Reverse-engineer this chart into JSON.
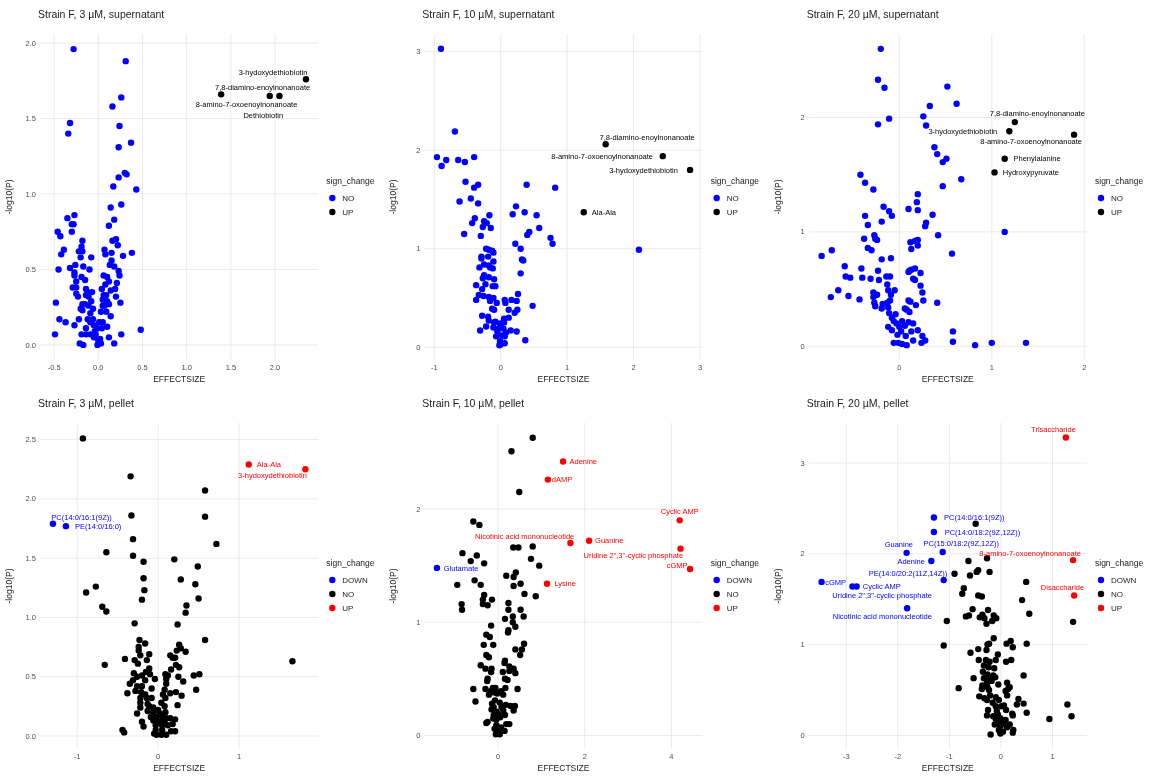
{
  "chart_data": [
    {
      "type": "scatter",
      "title": "Strain F, 3 µM, supernatant",
      "xlabel": "EFFECTSIZE",
      "ylabel": "-log10(P)",
      "legend_title": "sign_change",
      "legend": "right",
      "grid": true,
      "marker": "circle",
      "xlim": [
        -0.66,
        2.49
      ],
      "ylim": [
        -0.1,
        2.06
      ],
      "xticks": [
        -0.5,
        {
          "value": 0,
          "label": "0.0"
        },
        0.5,
        {
          "value": 1,
          "label": "1.0"
        },
        1.5,
        {
          "value": 2,
          "label": "2.0"
        }
      ],
      "yticks": [
        {
          "value": 0,
          "label": "0.0"
        },
        0.5,
        {
          "value": 1,
          "label": "1.0"
        },
        1.5,
        {
          "value": 2,
          "label": "2.0"
        }
      ],
      "series": [
        {
          "name": "NO",
          "color": "#0000ff",
          "x": [
            -0.28,
            0.31,
            0.26,
            0.16,
            -0.32,
            -0.34,
            0.24,
            0.37,
            0.23,
            0.3,
            0.32,
            0.23,
            0.17,
            0.43,
            0.26,
            0.14,
            0.18,
            0.12,
            -0.35,
            -0.27,
            -0.28,
            -0.3,
            -0.46,
            -0.43,
            -0.3,
            -0.18,
            0.16,
            0.2,
            0.22,
            -0.39,
            -0.22,
            -0.18,
            -0.19,
            -0.42,
            0.07,
            0.08,
            0.15,
            0.28,
            0.38,
            -0.2,
            -0.08,
            -0.45,
            -0.32,
            -0.26,
            -0.17,
            -0.1,
            0.15,
            0.13,
            0.18,
            0.23,
            0.24,
            -0.27,
            -0.27,
            -0.19,
            -0.15,
            0.06,
            0.1,
            0.12,
            0.21,
            -0.25,
            -0.29,
            -0.25,
            0.08,
            0.19,
            -0.25,
            -0.14,
            -0.12,
            -0.07,
            0.04,
            0.14,
            -0.23,
            -0.14,
            -0.11,
            0.06,
            0.09,
            0.05,
            0.1,
            0.2,
            -0.18,
            -0.08,
            -0.48,
            0.25,
            0.12,
            0.05,
            -0.11,
            -0.15,
            -0.2,
            -0.18,
            -0.06,
            0.07,
            -0.09,
            0.03,
            0.09,
            -0.44,
            -0.37,
            -0.22,
            -0.12,
            -0.06,
            0.14,
            -0.27,
            -0.09,
            -0.05,
            0.01,
            0.05,
            0.1,
            -0.14,
            -0.01,
            0.04,
            0.48,
            -0.04,
            -0.49,
            -0.19,
            -0.14,
            -0.09,
            -0.03,
            0.26,
            0.12,
            -0.05,
            0.02,
            0.0,
            -0.21,
            -0.17,
            -0.01,
            0.03,
            0.18
          ],
          "values": [
            1.96,
            1.88,
            1.64,
            1.58,
            1.47,
            1.4,
            1.45,
            1.34,
            1.31,
            1.14,
            1.13,
            1.11,
            1.05,
            1.03,
            0.93,
            0.91,
            0.83,
            0.79,
            0.84,
            0.86,
            0.8,
            0.8,
            0.75,
            0.72,
            0.75,
            0.69,
            0.69,
            0.7,
            0.66,
            0.63,
            0.62,
            0.62,
            0.65,
            0.6,
            0.63,
            0.6,
            0.61,
            0.59,
            0.61,
            0.58,
            0.58,
            0.5,
            0.51,
            0.53,
            0.52,
            0.5,
            0.56,
            0.53,
            0.52,
            0.49,
            0.46,
            0.48,
            0.46,
            0.45,
            0.43,
            0.46,
            0.45,
            0.42,
            0.41,
            0.42,
            0.38,
            0.38,
            0.4,
            0.37,
            0.34,
            0.37,
            0.35,
            0.35,
            0.37,
            0.36,
            0.32,
            0.33,
            0.32,
            0.33,
            0.33,
            0.3,
            0.29,
            0.32,
            0.27,
            0.29,
            0.28,
            0.28,
            0.27,
            0.26,
            0.26,
            0.27,
            0.24,
            0.23,
            0.24,
            0.26,
            0.21,
            0.22,
            0.22,
            0.17,
            0.15,
            0.17,
            0.17,
            0.17,
            0.19,
            0.13,
            0.15,
            0.13,
            0.15,
            0.15,
            0.12,
            0.11,
            0.11,
            0.11,
            0.1,
            0.09,
            0.07,
            0.07,
            0.07,
            0.07,
            0.07,
            0.07,
            0.05,
            0.05,
            0.04,
            0.03,
            0.01,
            0.0,
            0.0,
            0.01,
            0.01
          ]
        },
        {
          "name": "UP",
          "color": "#000000",
          "x": [
            2.35,
            1.39,
            1.94,
            2.05
          ],
          "values": [
            1.76,
            1.66,
            1.65,
            1.65
          ]
        }
      ],
      "annotations": [
        {
          "text": "3-hydoxydethiobiotin",
          "x": 2.35,
          "y": 1.76
        },
        {
          "text": "7,8-diamino-enoylnonanoate",
          "x": 1.39,
          "y": 1.66
        },
        {
          "text": "Dethiobiotin",
          "x": 2.05,
          "y": 1.65
        },
        {
          "text": "8-amino-7-oxoenoylnonanoate",
          "x": 1.94,
          "y": 1.65
        }
      ]
    },
    {
      "type": "scatter",
      "title": "Strain F, 10 µM, supernatant",
      "xlabel": "EFFECTSIZE",
      "ylabel": "-log10(P)",
      "legend_title": "sign_change",
      "legend": "right",
      "grid": true,
      "marker": "circle",
      "xlim": [
        -1.15,
        3.04
      ],
      "ylim": [
        -0.13,
        3.18
      ],
      "xticks": [
        -1,
        0,
        1,
        2,
        3
      ],
      "yticks": [
        0,
        1,
        2,
        3
      ],
      "series": [
        {
          "name": "NO",
          "color": "#0000ff",
          "x": [
            -0.9,
            -0.69,
            -0.96,
            -0.89,
            -0.82,
            -0.64,
            -0.54,
            -0.4,
            -0.53,
            -0.34,
            -0.4,
            -0.62,
            -0.45,
            -0.34,
            0.39,
            0.82,
            0.23,
            0.18,
            0.36,
            0.54,
            -0.17,
            -0.39,
            -0.43,
            -0.25,
            -0.21,
            -0.27,
            -0.15,
            0.58,
            0.43,
            0.4,
            -0.55,
            -0.3,
            0.75,
            0.78,
            0.22,
            0.3,
            2.08,
            -0.22,
            -0.18,
            -0.13,
            -0.11,
            -0.29,
            -0.29,
            -0.19,
            -0.11,
            0.32,
            0.34,
            -0.32,
            -0.25,
            -0.18,
            -0.16,
            -0.12,
            0.3,
            -0.25,
            -0.27,
            -0.18,
            -0.1,
            -0.37,
            -0.23,
            -0.12,
            -0.08,
            -0.28,
            -0.33,
            -0.26,
            -0.18,
            -0.11,
            -0.37,
            -0.16,
            -0.06,
            0.06,
            0.16,
            0.26,
            0.24,
            0.07,
            0.48,
            -0.13,
            -0.1,
            0.12,
            0.25,
            0.21,
            -0.28,
            -0.19,
            -0.18,
            -0.08,
            0.05,
            0.12,
            -0.22,
            -0.1,
            -0.01,
            0.05,
            -0.11,
            -0.03,
            0.04,
            0.15,
            -0.31,
            0.24,
            -0.05,
            0.08,
            -0.07,
            0.02,
            0.06,
            0.37,
            -0.01,
            0.06,
            0.0,
            -0.02
          ],
          "values": [
            3.03,
            2.19,
            1.93,
            1.84,
            1.9,
            1.9,
            1.88,
            1.93,
            1.68,
            1.65,
            1.62,
            1.48,
            1.51,
            1.46,
            1.65,
            1.62,
            1.43,
            1.35,
            1.37,
            1.34,
            1.34,
            1.31,
            1.26,
            1.28,
            1.26,
            1.22,
            1.21,
            1.21,
            1.17,
            1.14,
            1.15,
            1.13,
            1.11,
            1.05,
            1.05,
            1.0,
            0.99,
            1.0,
            0.99,
            0.98,
            0.96,
            0.92,
            0.9,
            0.92,
            0.87,
            0.89,
            0.88,
            0.81,
            0.84,
            0.83,
            0.81,
            0.8,
            0.75,
            0.73,
            0.7,
            0.71,
            0.69,
            0.63,
            0.64,
            0.62,
            0.62,
            0.59,
            0.53,
            0.52,
            0.51,
            0.5,
            0.48,
            0.47,
            0.45,
            0.48,
            0.48,
            0.54,
            0.47,
            0.45,
            0.42,
            0.39,
            0.38,
            0.38,
            0.38,
            0.35,
            0.32,
            0.31,
            0.27,
            0.26,
            0.29,
            0.3,
            0.21,
            0.25,
            0.24,
            0.25,
            0.2,
            0.19,
            0.19,
            0.17,
            0.17,
            0.16,
            0.16,
            0.15,
            0.11,
            0.12,
            0.11,
            0.07,
            0.06,
            0.04,
            0.03,
            0.02
          ]
        },
        {
          "name": "UP",
          "color": "#000000",
          "x": [
            1.58,
            2.85,
            2.44,
            1.25
          ],
          "values": [
            2.06,
            1.8,
            1.94,
            1.37
          ]
        }
      ],
      "annotations": [
        {
          "text": "7,8-diamino-enoylnonanoate",
          "x": 1.58,
          "y": 2.06
        },
        {
          "text": "3-hydoxydethiobiotin",
          "x": 2.85,
          "y": 1.8
        },
        {
          "text": "8-amino-7-oxoenoylnonanoate",
          "x": 2.44,
          "y": 1.94
        },
        {
          "text": "Ala-Ala",
          "x": 1.25,
          "y": 1.37
        }
      ]
    },
    {
      "type": "scatter",
      "title": "Strain F, 20 µM, supernatant",
      "xlabel": "EFFECTSIZE",
      "ylabel": "-log10(P)",
      "legend_title": "sign_change",
      "legend": "right",
      "grid": true,
      "marker": "circle",
      "xlim": [
        -0.98,
        2.03
      ],
      "ylim": [
        -0.12,
        2.73
      ],
      "xticks": [
        0,
        1,
        2
      ],
      "yticks": [
        0,
        1,
        2
      ],
      "series": [
        {
          "name": "NO",
          "color": "#0000ff",
          "x": [
            -0.2,
            -0.23,
            -0.16,
            0.52,
            0.62,
            0.33,
            0.26,
            -0.11,
            -0.23,
            0.29,
            0.38,
            0.41,
            0.51,
            0.47,
            -0.42,
            -0.37,
            0.47,
            -0.28,
            0.2,
            0.19,
            -0.17,
            0.1,
            0.2,
            -0.11,
            -0.08,
            -0.37,
            0.36,
            -0.19,
            -0.34,
            0.29,
            0.28,
            1.14,
            -0.27,
            -0.38,
            -0.26,
            -0.24,
            0.42,
            0.2,
            0.17,
            0.12,
            -0.73,
            -0.34,
            -0.3,
            -0.84,
            0.13,
            0.2,
            0.57,
            -0.09,
            -0.19,
            -0.59,
            -0.41,
            -0.23,
            0.11,
            0.13,
            0.17,
            0.1,
            -0.58,
            -0.53,
            -0.4,
            -0.31,
            -0.14,
            -0.1,
            -0.22,
            0.23,
            0.15,
            0.17,
            -0.13,
            0.23,
            -0.66,
            -0.05,
            -0.12,
            -0.28,
            -0.24,
            -0.09,
            0.25,
            -0.74,
            -0.55,
            -0.43,
            -0.28,
            -0.1,
            0.1,
            0.12,
            0.26,
            0.41,
            -0.27,
            -0.13,
            -0.18,
            -0.26,
            -0.19,
            -0.12,
            0.18,
            0.06,
            0.08,
            0.11,
            -0.04,
            -0.11,
            -0.08,
            -0.06,
            0.03,
            0.1,
            0.15,
            -0.12,
            -0.03,
            0.0,
            0.06,
            0.2,
            -0.08,
            0.02,
            0.13,
            0.58,
            0.25,
            -0.02,
            0.07,
            0.15,
            0.28,
            0.58,
            0.24,
            -0.06,
            -0.01,
            0.03,
            0.08,
            1.0,
            0.82,
            1.37,
            0.67
          ],
          "values": [
            2.6,
            2.33,
            2.26,
            2.27,
            2.12,
            2.1,
            2.01,
            1.99,
            1.94,
            1.93,
            1.74,
            1.68,
            1.64,
            1.61,
            1.5,
            1.43,
            1.4,
            1.37,
            1.33,
            1.26,
            1.22,
            1.2,
            1.19,
            1.18,
            1.14,
            1.14,
            1.15,
            1.09,
            1.06,
            1.08,
            1.05,
            1.0,
            0.97,
            0.94,
            0.94,
            0.93,
            0.97,
            0.93,
            0.92,
            0.91,
            0.84,
            0.86,
            0.84,
            0.79,
            0.85,
            0.88,
            0.81,
            0.77,
            0.76,
            0.7,
            0.68,
            0.66,
            0.66,
            0.67,
            0.68,
            0.65,
            0.61,
            0.6,
            0.6,
            0.59,
            0.61,
            0.61,
            0.58,
            0.64,
            0.59,
            0.58,
            0.54,
            0.53,
            0.49,
            0.49,
            0.49,
            0.47,
            0.45,
            0.45,
            0.47,
            0.43,
            0.44,
            0.41,
            0.43,
            0.4,
            0.4,
            0.39,
            0.4,
            0.38,
            0.38,
            0.38,
            0.37,
            0.35,
            0.33,
            0.34,
            0.36,
            0.33,
            0.32,
            0.3,
            0.28,
            0.29,
            0.25,
            0.22,
            0.22,
            0.21,
            0.2,
            0.17,
            0.2,
            0.17,
            0.18,
            0.14,
            0.14,
            0.13,
            0.13,
            0.13,
            0.09,
            0.1,
            0.09,
            0.05,
            0.05,
            0.04,
            0.03,
            0.03,
            0.03,
            0.02,
            0.01,
            0.03,
            0.01,
            0.03,
            1.46
          ]
        },
        {
          "name": "UP",
          "color": "#000000",
          "x": [
            1.25,
            1.19,
            1.89,
            1.14,
            1.03
          ],
          "values": [
            1.96,
            1.88,
            1.85,
            1.64,
            1.52
          ]
        }
      ],
      "annotations": [
        {
          "text": "7,8-diamino-enoylnonanoate",
          "x": 1.25,
          "y": 1.96
        },
        {
          "text": "3-hydoxydethiobiotin",
          "x": 1.19,
          "y": 1.88
        },
        {
          "text": "8-amino-7-oxoenoylnonanoate",
          "x": 1.89,
          "y": 1.85
        },
        {
          "text": "Phenylalanine",
          "x": 1.14,
          "y": 1.64
        },
        {
          "text": "Hydroxypyruvate",
          "x": 1.03,
          "y": 1.52
        }
      ]
    },
    {
      "type": "scatter",
      "title": "Strain F, 3 µM, pellet",
      "xlabel": "EFFECTSIZE",
      "ylabel": "-log10(P)",
      "legend_title": "sign_change",
      "legend": "right",
      "grid": true,
      "marker": "circle",
      "xlim": [
        -1.46,
        1.98
      ],
      "ylim": [
        -0.11,
        2.64
      ],
      "xticks": [
        -1,
        0,
        1
      ],
      "yticks": [
        {
          "value": 0,
          "label": "0.0"
        },
        0.5,
        {
          "value": 1,
          "label": "1.0"
        },
        1.5,
        {
          "value": 2,
          "label": "2.0"
        },
        2.5
      ],
      "series": [
        {
          "name": "DOWN",
          "color": "#0000ff",
          "x": [
            -1.3,
            -1.14
          ],
          "values": [
            1.79,
            1.77
          ]
        },
        {
          "name": "NO",
          "color": "#000000",
          "x": [
            -0.93,
            -0.34,
            0.58,
            -0.33,
            0.58,
            -0.31,
            0.72,
            -0.64,
            -0.31,
            -0.18,
            0.2,
            0.49,
            -0.18,
            0.28,
            -0.17,
            0.46,
            -0.77,
            -0.89,
            0.5,
            -0.2,
            0.35,
            -0.69,
            -0.64,
            0.34,
            -0.29,
            0.24,
            0.58,
            -0.23,
            -0.16,
            0.26,
            -0.24,
            0.28,
            1.66,
            -0.66,
            -0.11,
            -0.24,
            0.34,
            0.23,
            0.15,
            0.18,
            0.21,
            -0.22,
            -0.41,
            -0.29,
            -0.14,
            -0.25,
            0.22,
            -0.11,
            0.16,
            0.26,
            -0.3,
            -0.15,
            -0.1,
            0.44,
            0.51,
            -0.26,
            -0.2,
            0.09,
            0.12,
            0.25,
            -0.31,
            -0.04,
            0.1,
            -0.16,
            0.31,
            -0.35,
            -0.26,
            -0.2,
            0.1,
            0.47,
            -0.08,
            0.08,
            -0.38,
            -0.28,
            -0.21,
            -0.16,
            0.22,
            0.15,
            0.29,
            0.06,
            -0.22,
            -0.14,
            -0.08,
            0.09,
            -0.22,
            -0.13,
            0.04,
            0.24,
            -0.22,
            -0.11,
            -0.06,
            0.08,
            0.0,
            -0.26,
            -0.13,
            -0.06,
            0.02,
            0.09,
            -0.09,
            -0.02,
            0.05,
            0.1,
            0.15,
            0.21,
            -0.2,
            -0.06,
            0.01,
            0.08,
            0.18,
            -0.18,
            -0.03,
            0.05,
            0.12,
            -0.44,
            -0.42,
            -0.03,
            0.05,
            0.16,
            0.21,
            -0.05,
            0.04,
            0.1,
            -0.02
          ],
          "values": [
            2.51,
            2.19,
            2.07,
            1.86,
            1.85,
            1.66,
            1.62,
            1.55,
            1.52,
            1.47,
            1.49,
            1.43,
            1.33,
            1.32,
            1.23,
            1.28,
            1.26,
            1.21,
            1.16,
            1.15,
            1.1,
            1.09,
            1.05,
            1.04,
            0.95,
            0.94,
            0.81,
            0.81,
            0.78,
            0.77,
            0.75,
            0.74,
            0.63,
            0.6,
            0.69,
            0.72,
            0.71,
            0.72,
            0.68,
            0.66,
            0.66,
            0.68,
            0.65,
            0.64,
            0.64,
            0.61,
            0.6,
            0.57,
            0.56,
            0.58,
            0.53,
            0.54,
            0.52,
            0.51,
            0.52,
            0.5,
            0.51,
            0.52,
            0.51,
            0.5,
            0.47,
            0.48,
            0.48,
            0.47,
            0.46,
            0.44,
            0.42,
            0.42,
            0.44,
            0.39,
            0.4,
            0.39,
            0.36,
            0.38,
            0.37,
            0.35,
            0.37,
            0.36,
            0.34,
            0.35,
            0.32,
            0.32,
            0.32,
            0.32,
            0.28,
            0.27,
            0.28,
            0.26,
            0.24,
            0.25,
            0.24,
            0.25,
            0.22,
            0.19,
            0.21,
            0.2,
            0.19,
            0.2,
            0.16,
            0.16,
            0.16,
            0.15,
            0.15,
            0.14,
            0.12,
            0.13,
            0.12,
            0.13,
            0.1,
            0.08,
            0.09,
            0.09,
            0.09,
            0.05,
            0.03,
            0.05,
            0.05,
            0.04,
            0.04,
            0.02,
            0.01,
            0.01,
            0.01
          ]
        },
        {
          "name": "UP",
          "color": "#ff0000",
          "x": [
            1.12,
            1.82
          ],
          "values": [
            2.29,
            2.25
          ]
        }
      ],
      "annotations": [
        {
          "text": "PC(14:0/16:1(9Z))",
          "x": -1.3,
          "y": 1.79
        },
        {
          "text": "PE(14:0/16:0)",
          "x": -1.14,
          "y": 1.77
        },
        {
          "text": "Ala-Ala",
          "x": 1.12,
          "y": 2.29
        },
        {
          "text": "3-hydoxydethiobiotin",
          "x": 1.82,
          "y": 2.25
        }
      ]
    },
    {
      "type": "scatter",
      "title": "Strain F, 10 µM, pellet",
      "xlabel": "EFFECTSIZE",
      "ylabel": "-log10(P)",
      "legend_title": "sign_change",
      "legend": "right",
      "grid": true,
      "marker": "circle",
      "xlim": [
        -1.7,
        4.72
      ],
      "ylim": [
        -0.12,
        2.76
      ],
      "xticks": [
        0,
        2,
        4
      ],
      "yticks": [
        0,
        1,
        2
      ],
      "series": [
        {
          "name": "DOWN",
          "color": "#0000ff",
          "x": [
            -1.41
          ],
          "values": [
            1.48
          ]
        },
        {
          "name": "NO",
          "color": "#000000",
          "x": [
            0.8,
            0.31,
            0.49,
            -0.57,
            -0.43,
            0.35,
            0.47,
            0.8,
            -0.82,
            -0.49,
            -0.63,
            -0.32,
            0.76,
            0.95,
            0.19,
            0.41,
            0.36,
            0.36,
            0.52,
            -0.54,
            -0.4,
            -0.94,
            0.61,
            0.87,
            -0.32,
            -0.35,
            -0.14,
            -0.35,
            -0.24,
            -0.84,
            -0.83,
            0.24,
            0.24,
            0.52,
            0.16,
            0.34,
            0.59,
            0.34,
            -0.16,
            0.4,
            0.24,
            0.23,
            -0.27,
            -0.19,
            -0.33,
            -0.11,
            0.6,
            0.4,
            0.55,
            0.51,
            -0.27,
            -0.21,
            0.16,
            0.15,
            -0.4,
            -0.29,
            -0.15,
            -0.16,
            0.26,
            0.36,
            0.26,
            0.4,
            0.11,
            -0.24,
            -0.25,
            0.16,
            0.22,
            -0.57,
            -0.29,
            -0.12,
            -0.06,
            0.17,
            0.45,
            -0.17,
            -0.09,
            0.07,
            -0.02,
            -0.21,
            0.12,
            -0.52,
            -0.07,
            -0.14,
            0.04,
            0.18,
            0.39,
            -0.1,
            0.08,
            0.29,
            -0.15,
            -0.03,
            0.12,
            0.36,
            -0.1,
            0.02,
            0.16,
            -0.11,
            -0.04,
            0.05,
            -0.24,
            -0.27,
            0.19,
            0.26,
            -0.04,
            0.07,
            -0.08,
            0.01,
            0.15,
            -0.05,
            0.04
          ],
          "values": [
            2.63,
            2.51,
            2.15,
            1.89,
            1.86,
            1.66,
            1.66,
            1.67,
            1.61,
            1.59,
            1.54,
            1.52,
            1.56,
            1.5,
            1.41,
            1.44,
            1.4,
            1.32,
            1.34,
            1.37,
            1.33,
            1.33,
            1.25,
            1.23,
            1.24,
            1.2,
            1.2,
            1.16,
            1.15,
            1.16,
            1.11,
            1.17,
            1.11,
            1.11,
            1.03,
            1.05,
            1.05,
            1.0,
            0.97,
            0.96,
            0.93,
            0.91,
            0.89,
            0.87,
            0.8,
            0.8,
            0.81,
            0.76,
            0.76,
            0.71,
            0.71,
            0.69,
            0.66,
            0.64,
            0.62,
            0.59,
            0.59,
            0.56,
            0.61,
            0.59,
            0.57,
            0.55,
            0.56,
            0.5,
            0.48,
            0.5,
            0.49,
            0.41,
            0.41,
            0.42,
            0.42,
            0.42,
            0.41,
            0.39,
            0.38,
            0.39,
            0.37,
            0.36,
            0.36,
            0.3,
            0.31,
            0.28,
            0.29,
            0.27,
            0.26,
            0.25,
            0.25,
            0.26,
            0.23,
            0.21,
            0.22,
            0.22,
            0.18,
            0.18,
            0.18,
            0.15,
            0.14,
            0.16,
            0.12,
            0.11,
            0.1,
            0.1,
            0.09,
            0.07,
            0.06,
            0.04,
            0.04,
            0.01,
            0.01
          ]
        },
        {
          "name": "UP",
          "color": "#ff0000",
          "x": [
            1.5,
            1.15,
            4.19,
            2.1,
            1.67,
            4.21,
            4.43,
            1.13
          ],
          "values": [
            2.42,
            2.26,
            1.9,
            1.72,
            1.7,
            1.65,
            1.47,
            1.34
          ]
        }
      ],
      "annotations": [
        {
          "text": "Glutamate",
          "x": -1.41,
          "y": 1.48
        },
        {
          "text": "Adenine",
          "x": 1.5,
          "y": 2.42
        },
        {
          "text": "dAMP",
          "x": 1.15,
          "y": 2.26
        },
        {
          "text": "Cyclic AMP",
          "x": 4.19,
          "y": 1.9
        },
        {
          "text": "Guanine",
          "x": 2.1,
          "y": 1.72
        },
        {
          "text": "Nicotinic acid mononucleotide",
          "x": 1.67,
          "y": 1.7
        },
        {
          "text": "Uridine 2\",3\"-cyclic phosphate",
          "x": 4.21,
          "y": 1.65
        },
        {
          "text": "cGMP",
          "x": 4.43,
          "y": 1.47
        },
        {
          "text": "Lysine",
          "x": 1.13,
          "y": 1.34
        }
      ]
    },
    {
      "type": "scatter",
      "title": "Strain F, 20 µM, pellet",
      "xlabel": "EFFECTSIZE",
      "ylabel": "-log10(P)",
      "legend_title": "sign_change",
      "legend": "right",
      "grid": true,
      "marker": "circle",
      "xlim": [
        -3.73,
        1.67
      ],
      "ylim": [
        -0.15,
        3.44
      ],
      "xticks": [
        -3,
        -2,
        -1,
        0,
        1
      ],
      "yticks": [
        0,
        1,
        2,
        3
      ],
      "series": [
        {
          "name": "DOWN",
          "color": "#0000ff",
          "x": [
            -1.3,
            -1.3,
            -1.83,
            -1.13,
            -1.35,
            -3.48,
            -2.88,
            -2.8,
            -1.11,
            -1.82
          ],
          "values": [
            2.4,
            2.24,
            2.01,
            2.02,
            1.92,
            1.69,
            1.64,
            1.64,
            1.71,
            1.4
          ]
        },
        {
          "name": "NO",
          "color": "#000000",
          "x": [
            -0.49,
            -0.63,
            -0.27,
            -0.47,
            -0.44,
            -0.9,
            -0.22,
            -0.6,
            0.49,
            -0.72,
            -0.75,
            -0.44,
            -0.37,
            0.41,
            -0.55,
            -0.25,
            0.55,
            -0.68,
            -0.62,
            -0.36,
            -0.41,
            -0.14,
            -0.09,
            -0.32,
            -1.05,
            -0.17,
            -0.28,
            1.4,
            -0.14,
            -1.11,
            -0.26,
            -0.23,
            0.19,
            0.11,
            0.23,
            0.5,
            -0.44,
            -0.28,
            -0.59,
            -0.06,
            -0.43,
            -0.29,
            -0.22,
            -0.1,
            0.1,
            0.2,
            -0.33,
            -0.24,
            -0.13,
            -0.35,
            -0.26,
            -0.15,
            0.44,
            -0.53,
            -0.33,
            -0.21,
            -0.11,
            -0.27,
            -0.18,
            0.12,
            -0.36,
            -0.26,
            -0.05,
            0.17,
            0.14,
            -0.82,
            -0.37,
            -0.23,
            0.09,
            -0.42,
            -0.32,
            -0.21,
            -0.1,
            0.12,
            0.34,
            -0.27,
            -0.16,
            -0.04,
            0.31,
            0.44,
            0.06,
            -0.1,
            0.01,
            -0.25,
            -0.08,
            0.1,
            0.5,
            1.29,
            -0.27,
            -0.15,
            -0.06,
            0.22,
            0.23,
            1.37,
            0.94,
            -0.1,
            -0.01,
            0.09,
            -0.05,
            0.05,
            0.17,
            -0.12,
            -0.01,
            0.12,
            -0.04,
            0.24,
            0.04,
            -0.2,
            -0.01,
            0.23
          ],
          "values": [
            2.33,
            1.92,
            1.95,
            1.8,
            1.82,
            1.78,
            1.8,
            1.76,
            1.69,
            1.62,
            1.56,
            1.54,
            1.53,
            1.49,
            1.39,
            1.38,
            1.34,
            1.31,
            1.32,
            1.33,
            1.3,
            1.32,
            1.29,
            1.29,
            1.26,
            1.26,
            1.23,
            1.25,
            1.07,
            0.99,
            1.0,
            1.01,
            1.04,
            1.01,
            0.97,
            1.01,
            0.95,
            0.94,
            0.91,
            0.89,
            0.83,
            0.83,
            0.81,
            0.83,
            0.81,
            0.83,
            0.77,
            0.75,
            0.74,
            0.7,
            0.67,
            0.66,
            0.66,
            0.63,
            0.63,
            0.62,
            0.64,
            0.58,
            0.6,
            0.58,
            0.55,
            0.53,
            0.56,
            0.53,
            0.51,
            0.52,
            0.51,
            0.5,
            0.49,
            0.43,
            0.41,
            0.44,
            0.42,
            0.44,
            0.4,
            0.39,
            0.36,
            0.39,
            0.34,
            0.35,
            0.33,
            0.32,
            0.32,
            0.28,
            0.27,
            0.28,
            0.25,
            0.34,
            0.22,
            0.21,
            0.23,
            0.24,
            0.22,
            0.21,
            0.18,
            0.18,
            0.19,
            0.17,
            0.14,
            0.13,
            0.12,
            0.12,
            0.1,
            0.09,
            0.06,
            0.06,
            0.04,
            0.01,
            0.02,
            0.03
          ]
        },
        {
          "name": "UP",
          "color": "#ff0000",
          "x": [
            1.26,
            1.4,
            1.42
          ],
          "values": [
            3.28,
            1.93,
            1.54
          ]
        }
      ],
      "annotations": [
        {
          "text": "PC(14:0/16:1(9Z))",
          "x": -1.3,
          "y": 2.4
        },
        {
          "text": "PC(14:0/18:2(9Z,12Z))",
          "x": -1.3,
          "y": 2.24
        },
        {
          "text": "Guanine",
          "x": -1.83,
          "y": 2.01
        },
        {
          "text": "PC(15:0/18:2(9Z,12Z))",
          "x": -1.13,
          "y": 2.02
        },
        {
          "text": "Adenine",
          "x": -1.35,
          "y": 1.92
        },
        {
          "text": "cGMP",
          "x": -3.48,
          "y": 1.69
        },
        {
          "text": "Cyclic AMP",
          "x": -2.88,
          "y": 1.64
        },
        {
          "text": "Uridine 2\",3\"-cyclic phosphate",
          "x": -2.8,
          "y": 1.64
        },
        {
          "text": "PE(14:0/20:2(11Z,14Z))",
          "x": -1.11,
          "y": 1.71
        },
        {
          "text": "Nicotinic acid mononucleotide",
          "x": -1.82,
          "y": 1.4
        },
        {
          "text": "Trisaccharide",
          "x": 1.26,
          "y": 3.28
        },
        {
          "text": "8-amino-7-oxoenoylnonanoate",
          "x": 1.4,
          "y": 1.93
        },
        {
          "text": "Disaccharide",
          "x": 1.42,
          "y": 1.54
        }
      ]
    }
  ]
}
